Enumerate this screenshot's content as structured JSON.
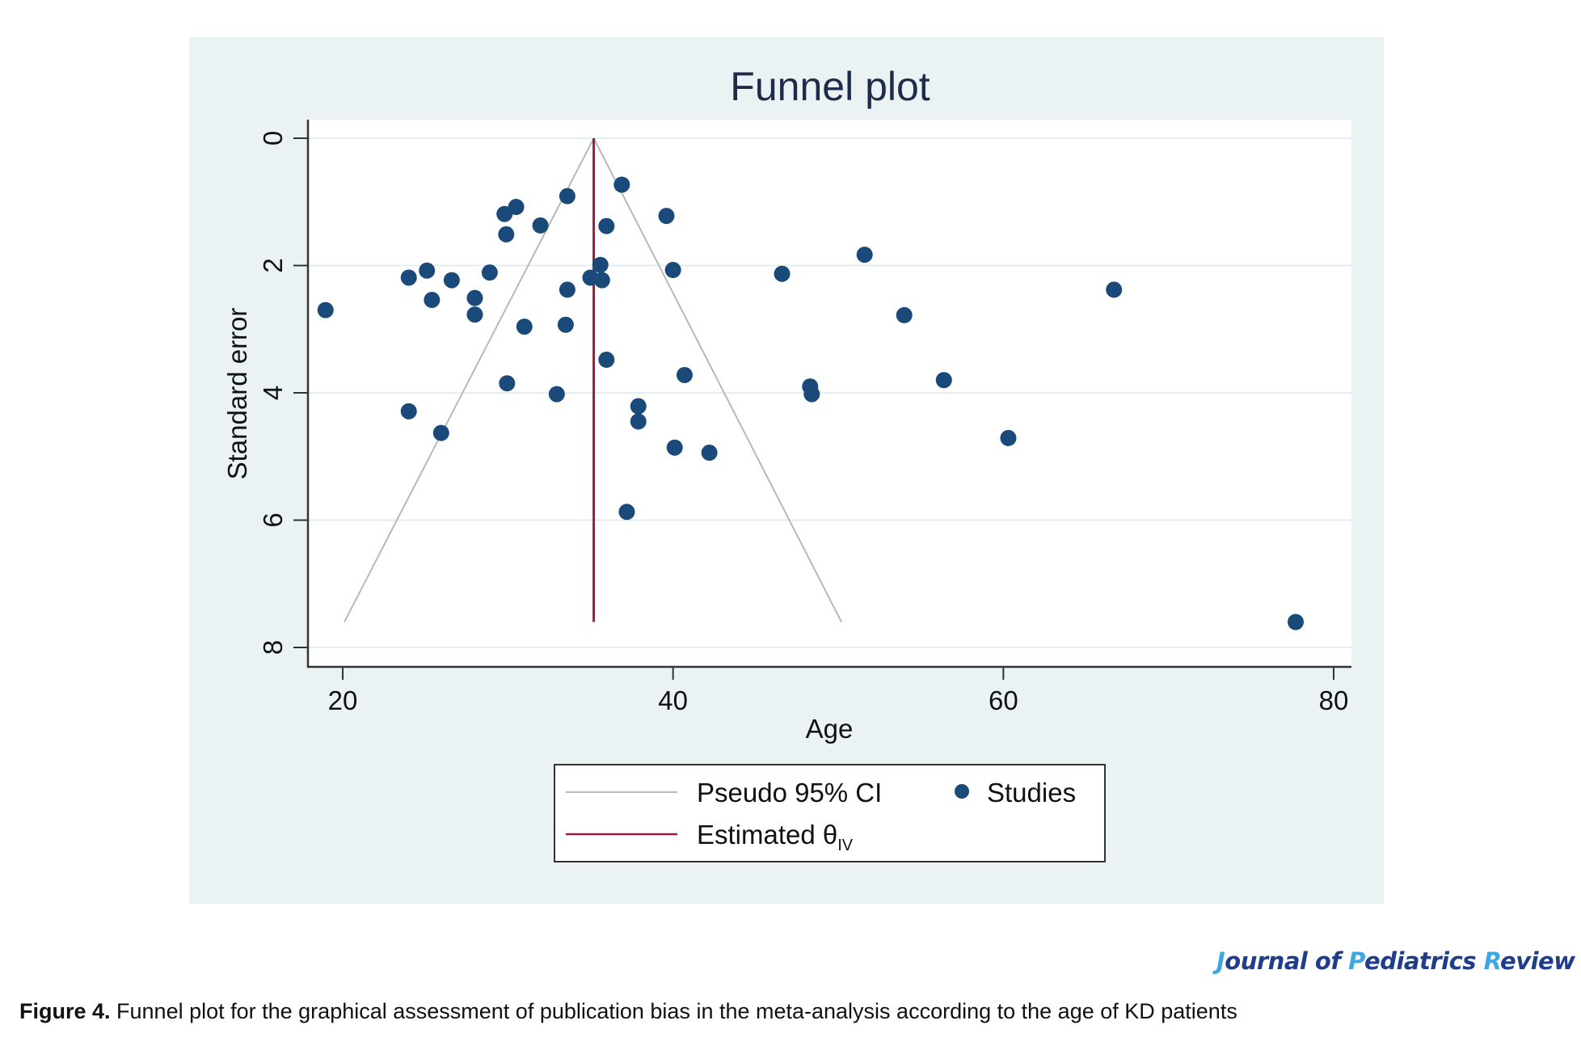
{
  "figure": {
    "journal": {
      "parts": [
        {
          "text": "J",
          "highlight": true
        },
        {
          "text": "ournal of ",
          "highlight": false
        },
        {
          "text": "P",
          "highlight": true
        },
        {
          "text": "ediatrics ",
          "highlight": false
        },
        {
          "text": "R",
          "highlight": true
        },
        {
          "text": "eview",
          "highlight": false
        }
      ]
    },
    "caption_label": "Figure 4.",
    "caption_text": " Funnel plot for the graphical assessment of publication bias in the meta-analysis according to the age of KD patients"
  },
  "colors": {
    "panel_bg": "#eaf2f3",
    "plot_bg": "#ffffff",
    "points": "#1a4a7a",
    "ci_lines": "#b8b8b8",
    "estimate_line": "#9b1b3c",
    "gridlines": "#e3eef0",
    "title": "#1e2b4a",
    "journal_dark": "#1f3d8a",
    "journal_light": "#3fa7df"
  },
  "chart_data": {
    "type": "scatter",
    "title": "Funnel plot",
    "xlabel": "Age",
    "ylabel": "Standard error",
    "xlim": [
      18,
      81
    ],
    "ylim": [
      0,
      8.3
    ],
    "y_reversed": true,
    "xticks": [
      20,
      40,
      60,
      80
    ],
    "yticks": [
      0,
      2,
      4,
      6,
      8
    ],
    "grid": "horizontal",
    "legend": {
      "placement": "bottom",
      "entries": [
        {
          "label": "Pseudo 95% CI",
          "type": "line",
          "color_key": "ci_lines"
        },
        {
          "label": "Studies",
          "type": "marker",
          "color_key": "points"
        },
        {
          "label": "Estimated θ",
          "subscript": "IV",
          "type": "line",
          "color_key": "estimate_line"
        }
      ]
    },
    "estimate": {
      "x": 35.2,
      "se_max": 7.6
    },
    "pseudo_ci": {
      "apex": [
        35.2,
        0
      ],
      "left_end": [
        20.1,
        7.6
      ],
      "right_end": [
        50.2,
        7.6
      ]
    },
    "series": [
      {
        "name": "Studies",
        "points": [
          [
            18.96,
            2.7
          ],
          [
            24.0,
            2.19
          ],
          [
            25.1,
            2.08
          ],
          [
            25.4,
            2.54
          ],
          [
            26.6,
            2.23
          ],
          [
            28.9,
            2.11
          ],
          [
            28.0,
            2.51
          ],
          [
            28.0,
            2.77
          ],
          [
            29.8,
            1.19
          ],
          [
            30.5,
            1.08
          ],
          [
            29.9,
            1.51
          ],
          [
            31.97,
            1.37
          ],
          [
            33.6,
            0.91
          ],
          [
            31.0,
            2.96
          ],
          [
            33.5,
            2.93
          ],
          [
            33.6,
            2.38
          ],
          [
            35.0,
            2.19
          ],
          [
            35.6,
            1.99
          ],
          [
            35.7,
            2.23
          ],
          [
            35.97,
            1.38
          ],
          [
            36.9,
            0.73
          ],
          [
            35.97,
            3.48
          ],
          [
            29.95,
            3.85
          ],
          [
            32.96,
            4.02
          ],
          [
            24.0,
            4.29
          ],
          [
            25.96,
            4.63
          ],
          [
            39.6,
            1.22
          ],
          [
            40.0,
            2.07
          ],
          [
            40.7,
            3.72
          ],
          [
            37.9,
            4.21
          ],
          [
            37.9,
            4.45
          ],
          [
            40.1,
            4.86
          ],
          [
            42.2,
            4.94
          ],
          [
            37.2,
            5.87
          ],
          [
            46.6,
            2.13
          ],
          [
            51.6,
            1.83
          ],
          [
            54.0,
            2.78
          ],
          [
            48.3,
            3.9
          ],
          [
            48.4,
            4.02
          ],
          [
            56.4,
            3.8
          ],
          [
            60.3,
            4.71
          ],
          [
            66.7,
            2.38
          ],
          [
            77.7,
            7.6
          ]
        ]
      }
    ]
  }
}
